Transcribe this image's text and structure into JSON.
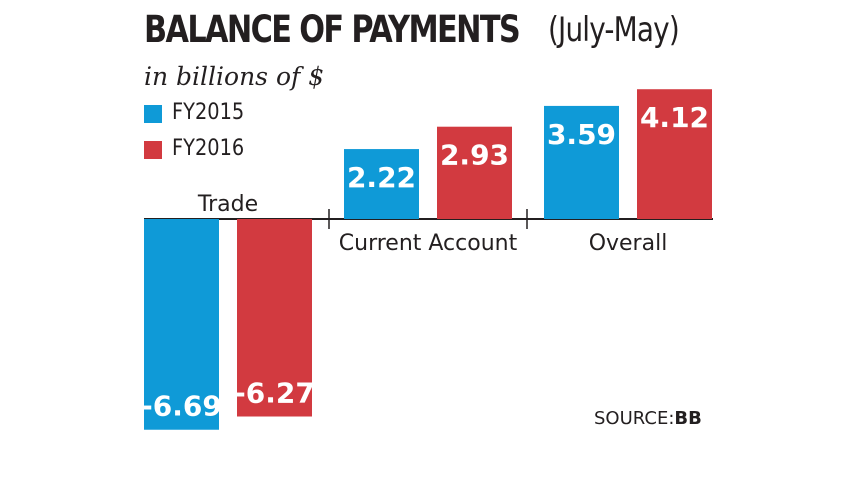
{
  "chart_data": {
    "type": "bar",
    "title": "BALANCE OF PAYMENTS",
    "title_suffix": "(July-May)",
    "subtitle": "in billions of $",
    "categories": [
      "Trade",
      "Current Account",
      "Overall"
    ],
    "series": [
      {
        "name": "FY2015",
        "values": [
          -6.69,
          2.22,
          3.59
        ],
        "color": "#0f9ad7"
      },
      {
        "name": "FY2016",
        "values": [
          -6.27,
          2.93,
          4.12
        ],
        "color": "#d23a40"
      }
    ],
    "data_labels": [
      [
        "-6.69",
        "2.22",
        "3.59"
      ],
      [
        "-6.27",
        "2.93",
        "4.12"
      ]
    ],
    "source_label": "SOURCE:",
    "source_value": "BB",
    "legend": "top-left",
    "grid": false
  }
}
